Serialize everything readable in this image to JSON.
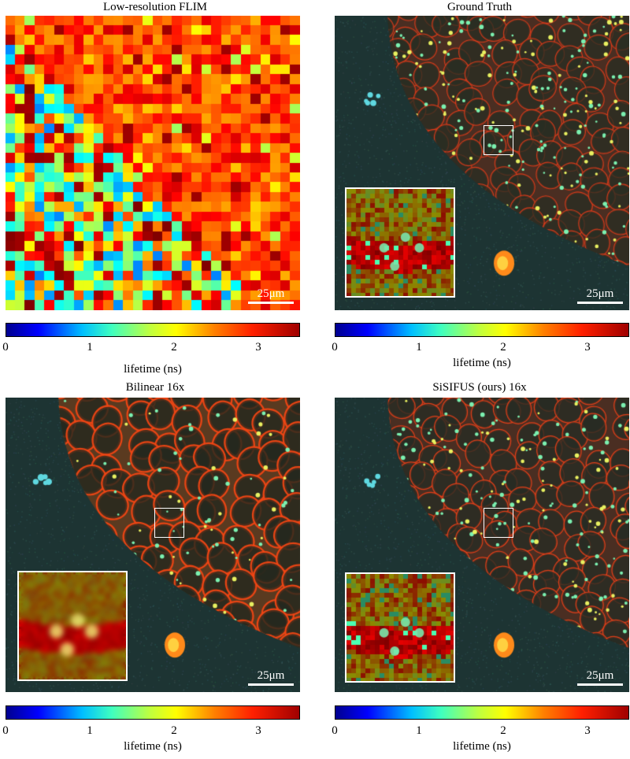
{
  "panels": [
    {
      "title": "Low-resolution FLIM",
      "kind": "lowres"
    },
    {
      "title": "Ground Truth",
      "kind": "gt"
    },
    {
      "title": "Bilinear 16x",
      "kind": "bilinear"
    },
    {
      "title": "SiSIFUS (ours) 16x",
      "kind": "ours"
    }
  ],
  "scale_bar": "25μm",
  "colorbar": {
    "label": "lifetime (ns)",
    "ticks": [
      "0",
      "1",
      "2",
      "3"
    ],
    "range_ns": [
      0,
      3.5
    ],
    "colormap": "jet"
  },
  "colors": {
    "background": "#ffffff",
    "tissue_dark": "#203a3a",
    "membrane": "#e83a1a",
    "overlay": "#ffffff"
  }
}
